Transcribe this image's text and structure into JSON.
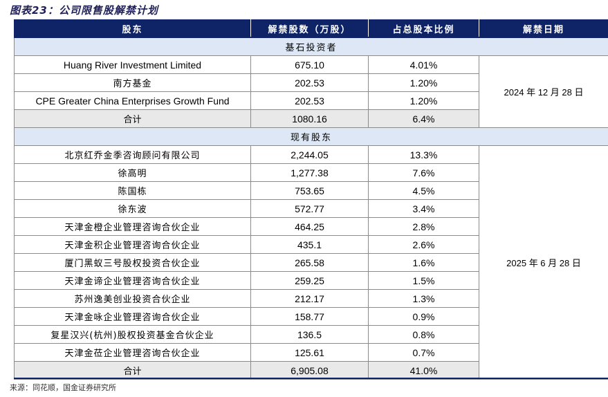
{
  "title": "图表23：公司限售股解禁计划",
  "headers": [
    "股东",
    "解禁股数（万股）",
    "占总股本比例",
    "解禁日期"
  ],
  "groups": [
    {
      "section": "基石投资者",
      "date": "2024 年 12 月 28 日",
      "rows": [
        {
          "name": "Huang River Investment Limited",
          "shares": "675.10",
          "pct": "4.01%"
        },
        {
          "name": "南方基金",
          "shares": "202.53",
          "pct": "1.20%"
        },
        {
          "name": "CPE Greater China Enterprises Growth Fund",
          "shares": "202.53",
          "pct": "1.20%"
        }
      ],
      "total": {
        "name": "合计",
        "shares": "1080.16",
        "pct": "6.4%"
      }
    },
    {
      "section": "现有股东",
      "date": "2025 年 6 月 28 日",
      "rows": [
        {
          "name": "北京红乔金季咨询顾问有限公司",
          "shares": "2,244.05",
          "pct": "13.3%"
        },
        {
          "name": "徐高明",
          "shares": "1,277.38",
          "pct": "7.6%"
        },
        {
          "name": "陈国栋",
          "shares": "753.65",
          "pct": "4.5%"
        },
        {
          "name": "徐东波",
          "shares": "572.77",
          "pct": "3.4%"
        },
        {
          "name": "天津金橙企业管理咨询合伙企业",
          "shares": "464.25",
          "pct": "2.8%"
        },
        {
          "name": "天津金积企业管理咨询合伙企业",
          "shares": "435.1",
          "pct": "2.6%"
        },
        {
          "name": "厦门黑蚁三号股权投资合伙企业",
          "shares": "265.58",
          "pct": "1.6%"
        },
        {
          "name": "天津金谛企业管理咨询合伙企业",
          "shares": "259.25",
          "pct": "1.5%"
        },
        {
          "name": "苏州逸美创业投资合伙企业",
          "shares": "212.17",
          "pct": "1.3%"
        },
        {
          "name": "天津金咏企业管理咨询合伙企业",
          "shares": "158.77",
          "pct": "0.9%"
        },
        {
          "name": "复星汉兴(杭州)股权投资基金合伙企业",
          "shares": "136.5",
          "pct": "0.8%"
        },
        {
          "name": "天津金莅企业管理咨询合伙企业",
          "shares": "125.61",
          "pct": "0.7%"
        }
      ],
      "total": {
        "name": "合计",
        "shares": "6,905.08",
        "pct": "41.0%"
      }
    }
  ],
  "source": "来源：同花顺，国金证券研究所"
}
